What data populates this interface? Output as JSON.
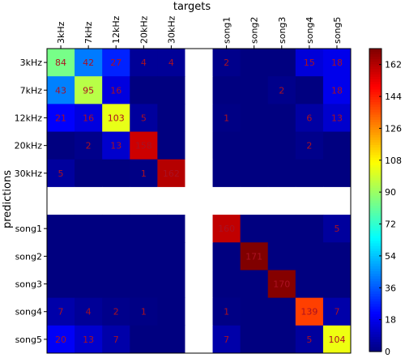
{
  "chart_data": {
    "type": "heatmap",
    "title": "",
    "xlabel": "targets",
    "ylabel": "predictions",
    "x_categories": [
      "3kHz",
      "7kHz",
      "12kHz",
      "20kHz",
      "30kHz",
      "",
      "song1",
      "song2",
      "song3",
      "song4",
      "song5"
    ],
    "y_categories": [
      "3kHz",
      "7kHz",
      "12kHz",
      "20kHz",
      "30kHz",
      "",
      "song1",
      "song2",
      "song3",
      "song4",
      "song5"
    ],
    "values": [
      [
        84,
        42,
        27,
        4,
        4,
        null,
        2,
        0,
        0,
        15,
        18
      ],
      [
        43,
        95,
        16,
        0,
        0,
        null,
        0,
        0,
        2,
        0,
        18
      ],
      [
        21,
        16,
        103,
        5,
        0,
        null,
        1,
        0,
        0,
        6,
        13
      ],
      [
        0,
        2,
        13,
        158,
        0,
        null,
        0,
        0,
        0,
        2,
        0
      ],
      [
        5,
        0,
        0,
        1,
        162,
        null,
        0,
        0,
        0,
        0,
        0
      ],
      [
        null,
        null,
        null,
        null,
        null,
        null,
        null,
        null,
        null,
        null,
        null
      ],
      [
        0,
        0,
        0,
        0,
        0,
        null,
        160,
        0,
        0,
        0,
        5
      ],
      [
        0,
        0,
        0,
        0,
        0,
        null,
        0,
        171,
        0,
        0,
        0
      ],
      [
        0,
        0,
        0,
        0,
        0,
        null,
        0,
        0,
        170,
        0,
        0
      ],
      [
        7,
        4,
        2,
        1,
        0,
        null,
        1,
        0,
        0,
        139,
        7
      ],
      [
        20,
        13,
        7,
        0,
        0,
        null,
        7,
        0,
        0,
        5,
        104
      ]
    ],
    "colormap": "jet",
    "colorbar": {
      "ticks": [
        0,
        18,
        36,
        54,
        72,
        90,
        108,
        126,
        144,
        162
      ],
      "range": [
        0,
        171
      ]
    },
    "label_color": "#aa1122",
    "gap_color": "#ffffff"
  }
}
